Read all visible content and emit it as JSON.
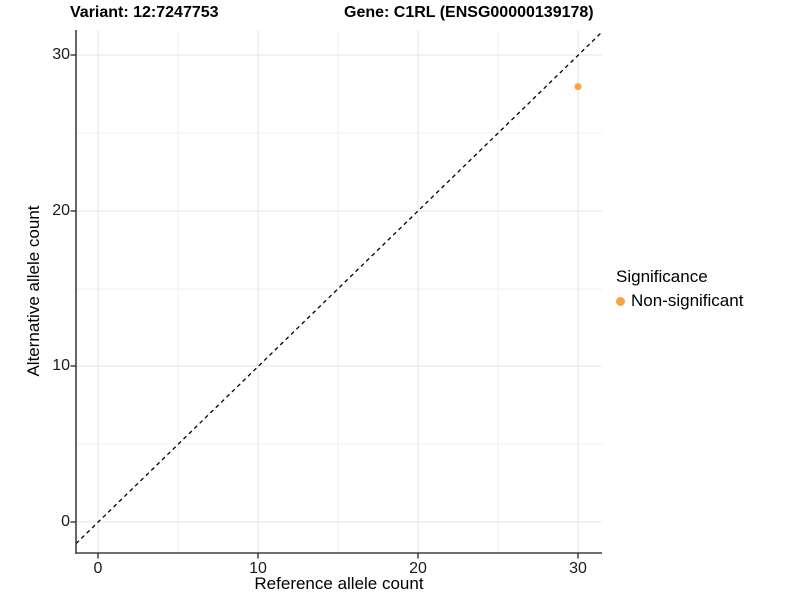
{
  "titles": {
    "variant": "Variant: 12:7247753",
    "gene": "Gene: C1RL (ENSG00000139178)"
  },
  "chart_data": {
    "type": "scatter",
    "title_left": "Variant: 12:7247753",
    "title_right": "Gene: C1RL (ENSG00000139178)",
    "xlabel": "Reference allele count",
    "ylabel": "Alternative allele count",
    "x_ticks": [
      0,
      10,
      20,
      30
    ],
    "y_ticks": [
      0,
      10,
      20,
      30
    ],
    "xlim": [
      -1.5,
      31.5
    ],
    "ylim": [
      -2,
      31.6
    ],
    "grid": "on",
    "grid_step_minor": 5,
    "reference_line": {
      "type": "identity y=x",
      "style": "dashed",
      "color": "#000000"
    },
    "series": [
      {
        "name": "Non-significant",
        "color": "#F9A242",
        "points": [
          {
            "x": 30,
            "y": 28
          }
        ]
      }
    ],
    "legend": {
      "title": "Significance",
      "position": "right",
      "items": [
        {
          "label": "Non-significant",
          "color": "#F9A242"
        }
      ]
    }
  },
  "colors": {
    "point": "#F9A242",
    "grid_major": "#e5e5e5",
    "grid_minor": "#f0f0f0",
    "axis_line": "#404040"
  }
}
